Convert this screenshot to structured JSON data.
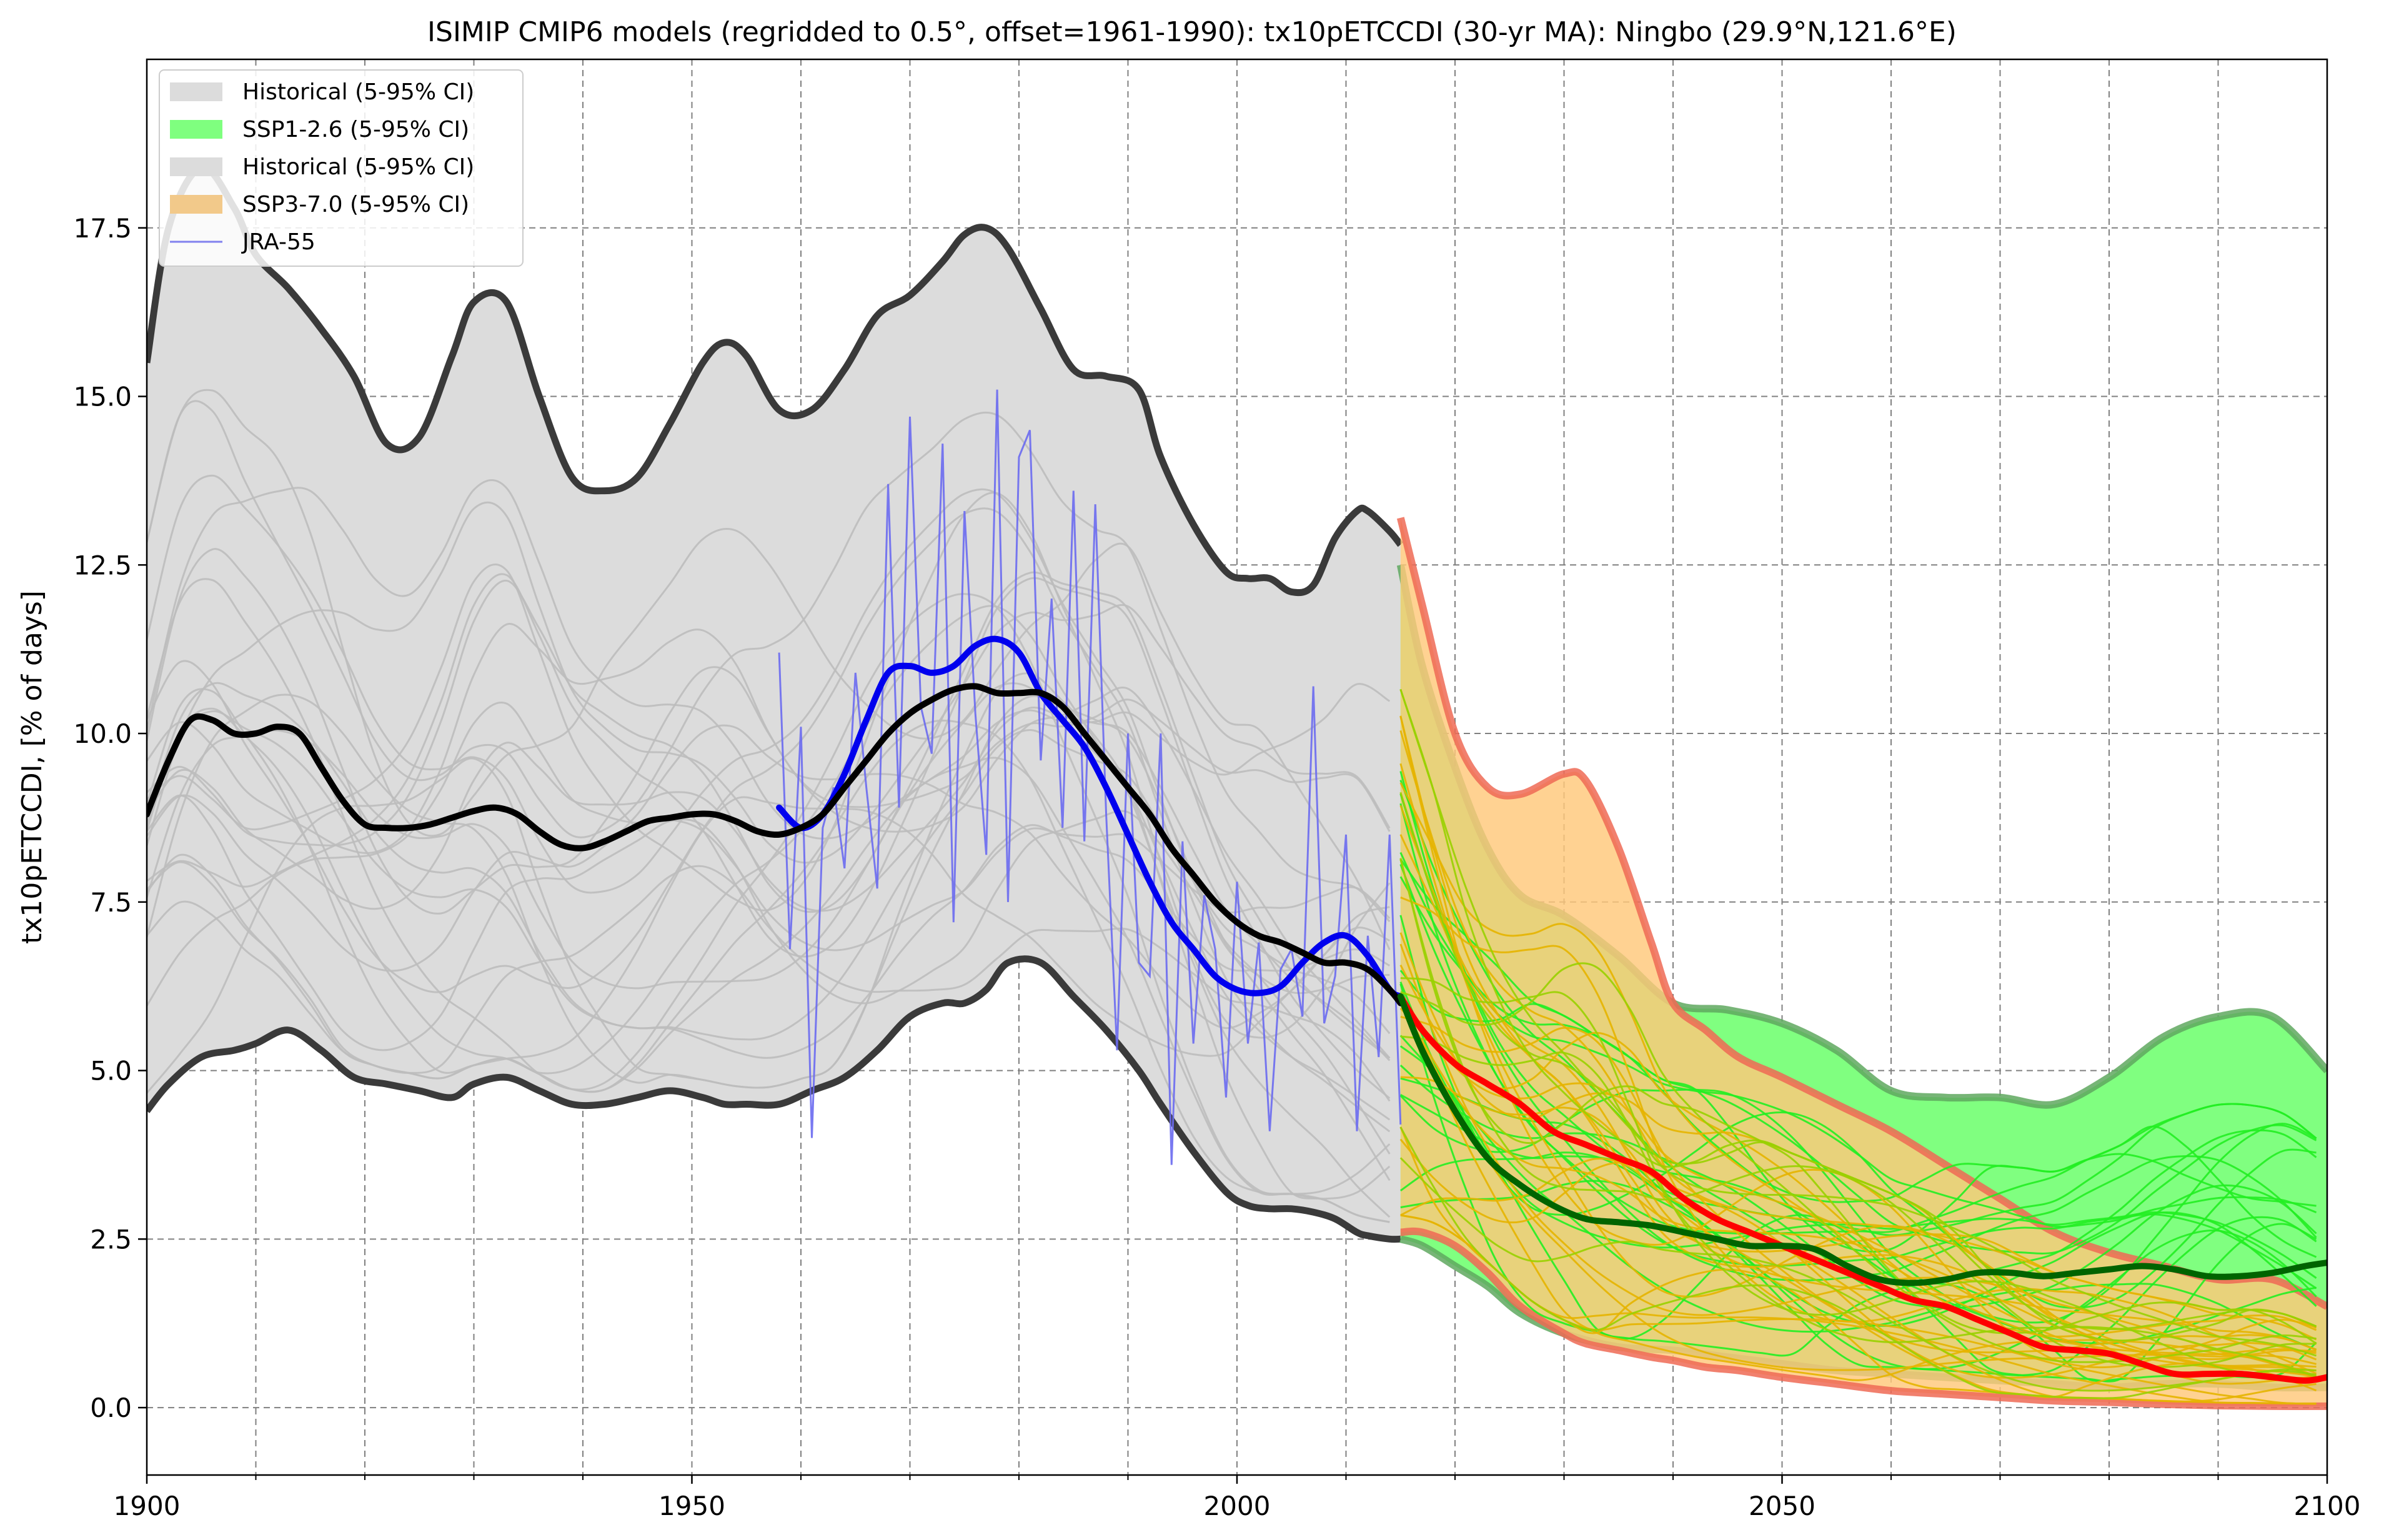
{
  "chart_data": {
    "type": "line",
    "title": "ISIMIP CMIP6 models (regridded to 0.5°, offset=1961-1990): tx10pETCCDI (30-yr MA): Ningbo (29.9°N,121.6°E)",
    "xlabel": "",
    "ylabel": "tx10pETCCDI, [% of days]",
    "xlim": [
      1900,
      2100
    ],
    "ylim": [
      -1.0,
      20.0
    ],
    "x_ticks": [
      1900,
      1950,
      2000,
      2050,
      2100
    ],
    "x_minor_ticks": [
      1910,
      1920,
      1930,
      1940,
      1960,
      1970,
      1980,
      1990,
      2010,
      2020,
      2030,
      2040,
      2060,
      2070,
      2080,
      2090
    ],
    "y_ticks": [
      0.0,
      2.5,
      5.0,
      7.5,
      10.0,
      12.5,
      15.0,
      17.5
    ],
    "y_tick_labels": [
      "0.0",
      "2.5",
      "5.0",
      "7.5",
      "10.0",
      "12.5",
      "15.0",
      "17.5"
    ],
    "grid": true,
    "legend_position": "top-left",
    "legend": [
      {
        "label": "Historical (5-95% CI)",
        "kind": "patch",
        "color": "#dcdcdc"
      },
      {
        "label": "SSP1-2.6 (5-95% CI)",
        "kind": "patch",
        "color": "#7fff7f"
      },
      {
        "label": "Historical (5-95% CI)",
        "kind": "patch",
        "color": "#dcdcdc"
      },
      {
        "label": "SSP3-7.0 (5-95% CI)",
        "kind": "patch",
        "color": "#f2c98a"
      },
      {
        "label": "JRA-55",
        "kind": "line",
        "color": "#8080ee"
      }
    ],
    "bands": [
      {
        "name": "Historical (5-95% CI)",
        "color": "#dcdcdc",
        "edge_color": "#3a3a3a",
        "x": [
          1900,
          1902,
          1905,
          1908,
          1910,
          1913,
          1916,
          1919,
          1922,
          1925,
          1928,
          1930,
          1933,
          1936,
          1939,
          1942,
          1945,
          1948,
          1951,
          1953,
          1955,
          1958,
          1961,
          1964,
          1967,
          1970,
          1973,
          1975,
          1977,
          1979,
          1982,
          1985,
          1988,
          1991,
          1993,
          1996,
          1999,
          2001,
          2003,
          2005,
          2007,
          2009,
          2011,
          2012,
          2014,
          2015
        ],
        "upper": [
          15.5,
          17.5,
          18.4,
          17.8,
          17.1,
          16.6,
          16.0,
          15.3,
          14.3,
          14.4,
          15.6,
          16.4,
          16.4,
          15.0,
          13.8,
          13.6,
          13.8,
          14.6,
          15.5,
          15.8,
          15.6,
          14.8,
          14.8,
          15.4,
          16.2,
          16.5,
          17.0,
          17.4,
          17.5,
          17.2,
          16.3,
          15.4,
          15.3,
          15.1,
          14.1,
          13.1,
          12.4,
          12.3,
          12.3,
          12.1,
          12.2,
          12.9,
          13.3,
          13.3,
          13.0,
          12.8
        ],
        "lower": [
          4.4,
          4.8,
          5.2,
          5.3,
          5.4,
          5.6,
          5.3,
          4.9,
          4.8,
          4.7,
          4.6,
          4.8,
          4.9,
          4.7,
          4.5,
          4.5,
          4.6,
          4.7,
          4.6,
          4.5,
          4.5,
          4.5,
          4.7,
          4.9,
          5.3,
          5.8,
          6.0,
          6.0,
          6.2,
          6.6,
          6.6,
          6.1,
          5.6,
          5.0,
          4.5,
          3.8,
          3.2,
          3.0,
          2.95,
          2.95,
          2.9,
          2.8,
          2.6,
          2.55,
          2.5,
          2.5
        ]
      },
      {
        "name": "SSP1-2.6 (5-95% CI)",
        "color": "#80ff80",
        "edge_color": "#5fa85f",
        "x": [
          2015,
          2017,
          2020,
          2023,
          2026,
          2030,
          2035,
          2040,
          2045,
          2050,
          2055,
          2060,
          2065,
          2070,
          2075,
          2080,
          2085,
          2090,
          2095,
          2100
        ],
        "upper": [
          12.5,
          11.0,
          9.5,
          8.3,
          7.6,
          7.3,
          6.7,
          6.0,
          5.9,
          5.7,
          5.3,
          4.7,
          4.6,
          4.6,
          4.5,
          4.9,
          5.5,
          5.8,
          5.8,
          5.0
        ],
        "lower": [
          2.5,
          2.4,
          2.1,
          1.8,
          1.4,
          1.1,
          0.9,
          0.85,
          0.75,
          0.65,
          0.55,
          0.5,
          0.45,
          0.4,
          0.35,
          0.3,
          0.35,
          0.35,
          0.3,
          0.3
        ]
      },
      {
        "name": "SSP3-7.0 (5-95% CI)",
        "color": "#ffc87a",
        "edge_color": "#ef6a55",
        "alpha": 0.82,
        "x": [
          2015,
          2017,
          2020,
          2023,
          2026,
          2030,
          2032,
          2035,
          2038,
          2040,
          2043,
          2046,
          2050,
          2055,
          2060,
          2065,
          2070,
          2075,
          2080,
          2085,
          2090,
          2095,
          2100
        ],
        "upper": [
          13.2,
          11.9,
          10.0,
          9.2,
          9.1,
          9.4,
          9.3,
          8.3,
          6.9,
          6.0,
          5.6,
          5.2,
          4.9,
          4.5,
          4.1,
          3.6,
          3.1,
          2.6,
          2.3,
          2.1,
          1.9,
          1.9,
          1.5
        ],
        "lower": [
          2.6,
          2.6,
          2.4,
          2.0,
          1.5,
          1.1,
          0.95,
          0.85,
          0.75,
          0.7,
          0.6,
          0.55,
          0.45,
          0.35,
          0.25,
          0.2,
          0.15,
          0.1,
          0.08,
          0.05,
          0.03,
          0.02,
          0.02
        ]
      }
    ],
    "series": [
      {
        "name": "JRA-55",
        "color": "#6a6af0",
        "x": [
          1958,
          1959,
          1960,
          1961,
          1962,
          1963,
          1964,
          1965,
          1966,
          1967,
          1968,
          1969,
          1970,
          1971,
          1972,
          1973,
          1974,
          1975,
          1976,
          1977,
          1978,
          1979,
          1980,
          1981,
          1982,
          1983,
          1984,
          1985,
          1986,
          1987,
          1988,
          1989,
          1990,
          1991,
          1992,
          1993,
          1994,
          1995,
          1996,
          1997,
          1998,
          1999,
          2000,
          2001,
          2002,
          2003,
          2004,
          2005,
          2006,
          2007,
          2008,
          2009,
          2010,
          2011,
          2012,
          2013,
          2014,
          2015
        ],
        "y": [
          11.2,
          6.8,
          10.1,
          4.0,
          8.6,
          9.2,
          8.0,
          10.9,
          9.2,
          7.7,
          13.7,
          8.9,
          14.7,
          10.4,
          9.7,
          14.3,
          7.2,
          13.3,
          10.3,
          8.2,
          15.1,
          7.5,
          14.1,
          14.5,
          9.6,
          12.0,
          8.6,
          13.6,
          8.4,
          13.4,
          8.8,
          5.3,
          10.0,
          6.6,
          6.4,
          10.0,
          3.6,
          8.4,
          5.4,
          7.6,
          6.8,
          4.6,
          7.8,
          5.4,
          6.9,
          4.1,
          6.5,
          6.8,
          5.8,
          10.7,
          5.7,
          6.4,
          8.5,
          4.1,
          7.0,
          5.2,
          8.5,
          4.2
        ]
      },
      {
        "name": "",
        "color": "#0000ee",
        "x": [
          1958,
          1960,
          1962,
          1964,
          1966,
          1968,
          1970,
          1972,
          1974,
          1976,
          1978,
          1980,
          1982,
          1984,
          1986,
          1988,
          1990,
          1992,
          1994,
          1996,
          1998,
          2000,
          2002,
          2004,
          2006,
          2008,
          2010,
          2012,
          2014,
          2015
        ],
        "y": [
          8.9,
          8.6,
          8.8,
          9.4,
          10.2,
          10.9,
          11.0,
          10.9,
          11.0,
          11.3,
          11.4,
          11.2,
          10.6,
          10.2,
          9.8,
          9.2,
          8.5,
          7.8,
          7.2,
          6.8,
          6.4,
          6.2,
          6.15,
          6.25,
          6.6,
          6.9,
          7.0,
          6.7,
          6.2,
          6.1
        ]
      },
      {
        "name": "",
        "color": "#000000",
        "x": [
          1900,
          1902,
          1904,
          1906,
          1908,
          1910,
          1912,
          1914,
          1916,
          1918,
          1920,
          1922,
          1924,
          1926,
          1928,
          1930,
          1932,
          1934,
          1936,
          1938,
          1940,
          1942,
          1944,
          1946,
          1948,
          1950,
          1952,
          1954,
          1956,
          1958,
          1960,
          1962,
          1964,
          1966,
          1968,
          1970,
          1972,
          1974,
          1976,
          1978,
          1980,
          1982,
          1984,
          1986,
          1988,
          1990,
          1992,
          1994,
          1996,
          1998,
          2000,
          2002,
          2004,
          2006,
          2008,
          2010,
          2012,
          2014,
          2015
        ],
        "y": [
          8.8,
          9.6,
          10.2,
          10.2,
          10.0,
          10.0,
          10.1,
          10.0,
          9.5,
          9.0,
          8.65,
          8.6,
          8.6,
          8.65,
          8.75,
          8.85,
          8.9,
          8.8,
          8.55,
          8.35,
          8.3,
          8.4,
          8.55,
          8.7,
          8.75,
          8.8,
          8.8,
          8.7,
          8.55,
          8.5,
          8.6,
          8.8,
          9.2,
          9.6,
          10.0,
          10.3,
          10.5,
          10.65,
          10.7,
          10.6,
          10.6,
          10.6,
          10.4,
          10.0,
          9.6,
          9.2,
          8.8,
          8.3,
          7.9,
          7.5,
          7.2,
          7.0,
          6.9,
          6.75,
          6.6,
          6.6,
          6.5,
          6.2,
          6.0
        ]
      },
      {
        "name": "",
        "color": "#ff0000",
        "x": [
          2015,
          2017,
          2020,
          2023,
          2026,
          2029,
          2032,
          2035,
          2038,
          2041,
          2044,
          2047,
          2050,
          2053,
          2056,
          2059,
          2062,
          2065,
          2068,
          2071,
          2074,
          2077,
          2080,
          2083,
          2086,
          2089,
          2092,
          2095,
          2098,
          2100
        ],
        "y": [
          6.1,
          5.6,
          5.1,
          4.8,
          4.5,
          4.1,
          3.9,
          3.7,
          3.5,
          3.1,
          2.8,
          2.6,
          2.4,
          2.2,
          2.0,
          1.8,
          1.6,
          1.5,
          1.3,
          1.1,
          0.9,
          0.85,
          0.8,
          0.65,
          0.5,
          0.5,
          0.5,
          0.45,
          0.4,
          0.45
        ]
      },
      {
        "name": "",
        "color": "#006400",
        "x": [
          2015,
          2017,
          2020,
          2023,
          2026,
          2029,
          2032,
          2035,
          2038,
          2041,
          2044,
          2047,
          2050,
          2053,
          2056,
          2059,
          2062,
          2065,
          2068,
          2071,
          2074,
          2077,
          2080,
          2083,
          2086,
          2089,
          2092,
          2095,
          2098,
          2100
        ],
        "y": [
          6.1,
          5.3,
          4.4,
          3.7,
          3.3,
          3.0,
          2.8,
          2.75,
          2.7,
          2.6,
          2.5,
          2.4,
          2.4,
          2.35,
          2.1,
          1.9,
          1.85,
          1.9,
          2.0,
          2.0,
          1.95,
          2.0,
          2.05,
          2.1,
          2.05,
          1.95,
          1.95,
          2.0,
          2.1,
          2.15
        ]
      }
    ],
    "model_runs_note_hidden": null
  }
}
